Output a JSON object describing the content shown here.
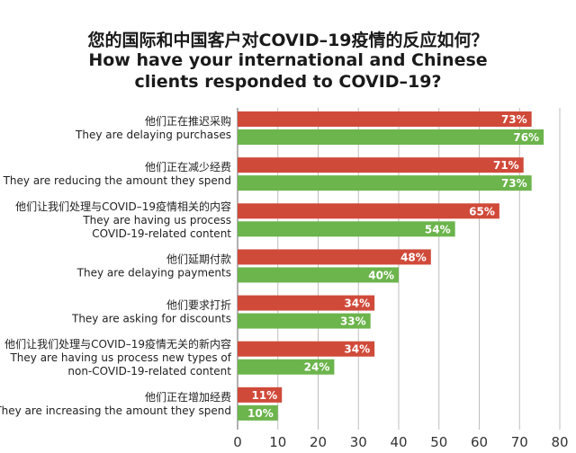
{
  "colors": {
    "international": "#d04a3a",
    "chinese": "#6cb44c",
    "grid": "#bfbfbf",
    "axis": "#666666"
  },
  "chart_data": {
    "type": "bar",
    "orientation": "horizontal",
    "title_zh": "您的国际和中国客户对COVID–19疫情的反应如何？",
    "title_en_line1": "How have your international and Chinese",
    "title_en_line2": "clients responded to COVID–19?",
    "categories": [
      {
        "zh": "他们正在推迟采购",
        "en": [
          "They are delaying purchases"
        ]
      },
      {
        "zh": "他们正在减少经费",
        "en": [
          "They are reducing the amount they spend"
        ]
      },
      {
        "zh": "他们让我们处理与COVID–19疫情相关的内容",
        "en": [
          "They are having us process",
          "COVID-19-related content"
        ]
      },
      {
        "zh": "他们延期付款",
        "en": [
          "They are delaying payments"
        ]
      },
      {
        "zh": "他们要求打折",
        "en": [
          "They are asking for discounts"
        ]
      },
      {
        "zh": "他们让我们处理与COVID–19疫情无关的新内容",
        "en": [
          "They are having us process new types of",
          "non-COVID-19-related content"
        ]
      },
      {
        "zh": "他们正在增加经费",
        "en": [
          "They are increasing the amount they spend"
        ]
      }
    ],
    "series": [
      {
        "values": [
          73,
          71,
          65,
          48,
          34,
          34,
          11
        ],
        "labels": [
          "73%",
          "71%",
          "65%",
          "48%",
          "34%",
          "34%",
          "11%"
        ]
      },
      {
        "values": [
          76,
          73,
          54,
          40,
          33,
          24,
          10
        ],
        "labels": [
          "76%",
          "73%",
          "54%",
          "40%",
          "33%",
          "24%",
          "10%"
        ]
      }
    ],
    "xlim": [
      0,
      80
    ],
    "xticks": [
      "0",
      "10",
      "20",
      "30",
      "40",
      "50",
      "60",
      "70",
      "80"
    ],
    "grid": true
  }
}
